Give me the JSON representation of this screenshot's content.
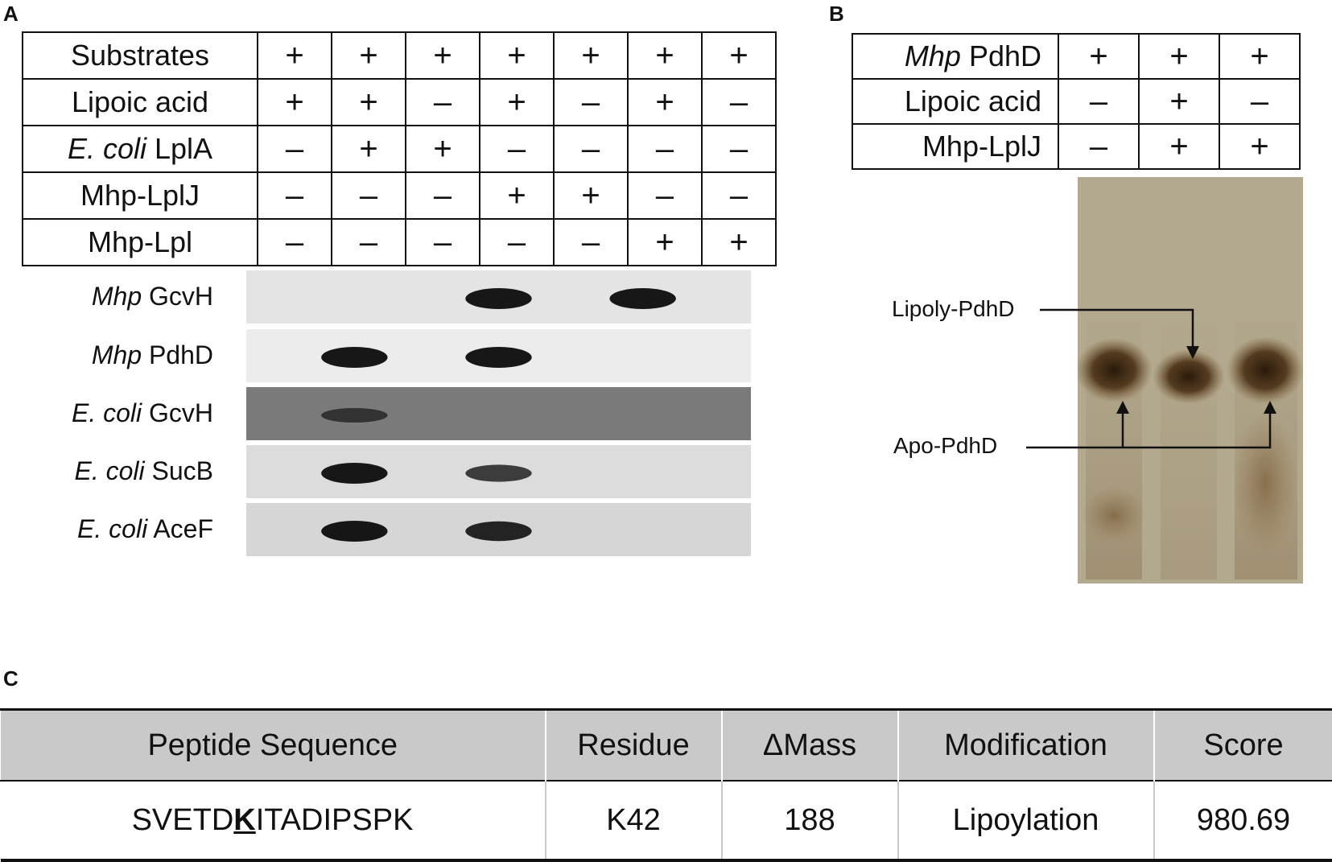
{
  "panelA": {
    "letter": "A",
    "rows": [
      {
        "label": "Substrates",
        "values": [
          "+",
          "+",
          "+",
          "+",
          "+",
          "+",
          "+"
        ]
      },
      {
        "label": "Lipoic acid",
        "values": [
          "+",
          "+",
          "–",
          "+",
          "–",
          "+",
          "–"
        ]
      },
      {
        "label_italic": "E. coli",
        "label": "LplA",
        "values": [
          "–",
          "+",
          "+",
          "–",
          "–",
          "–",
          "–"
        ]
      },
      {
        "label": "Mhp-LplJ",
        "values": [
          "–",
          "–",
          "–",
          "+",
          "+",
          "–",
          "–"
        ]
      },
      {
        "label": "Mhp-Lpl",
        "values": [
          "–",
          "–",
          "–",
          "–",
          "–",
          "+",
          "+"
        ]
      }
    ],
    "blots": [
      {
        "italic": "Mhp",
        "name": "GcvH",
        "bg": "#e4e4e4",
        "bands": [
          0,
          0,
          0,
          1,
          0,
          1,
          0
        ]
      },
      {
        "italic": "Mhp",
        "name": "PdhD",
        "bg": "#ececec",
        "bands": [
          0,
          1,
          0,
          1,
          0,
          0,
          0
        ]
      },
      {
        "italic": "E. coli",
        "name": "GcvH",
        "bg": "#7a7a7a",
        "bands": [
          0,
          0.5,
          0,
          0,
          0,
          0,
          0
        ]
      },
      {
        "italic": "E. coli",
        "name": "SucB",
        "bg": "#dcdcdc",
        "bands": [
          0,
          1,
          0,
          0.7,
          0,
          0,
          0
        ]
      },
      {
        "italic": "E. coli",
        "name": "AceF",
        "bg": "#d6d6d6",
        "bands": [
          0,
          1,
          0,
          0.9,
          0,
          0,
          0
        ]
      }
    ]
  },
  "panelB": {
    "letter": "B",
    "rows": [
      {
        "label_italic": "Mhp",
        "label": "PdhD",
        "values": [
          "+",
          "+",
          "+"
        ]
      },
      {
        "label": "Lipoic acid",
        "values": [
          "–",
          "+",
          "–"
        ]
      },
      {
        "label": "Mhp-LplJ",
        "values": [
          "–",
          "+",
          "+"
        ]
      }
    ],
    "annotations": {
      "lipoyl": "Lipoly-PdhD",
      "apo": "Apo-PdhD"
    },
    "gel_color": "#b3a98e"
  },
  "panelC": {
    "letter": "C",
    "headers": [
      "Peptide Sequence",
      "Residue",
      "ΔMass",
      "Modification",
      "Score"
    ],
    "row": {
      "seq_pre": "SVETD",
      "seq_mod": "K",
      "seq_post": "ITADIPSPK",
      "residue": "K42",
      "mass": "188",
      "modification": "Lipoylation",
      "score": "980.69"
    }
  }
}
